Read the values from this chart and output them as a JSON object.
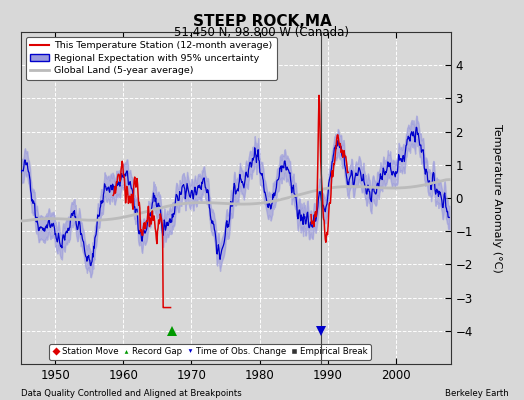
{
  "title": "STEEP ROCK,MA",
  "subtitle": "51.450 N, 98.800 W (Canada)",
  "xlabel_left": "Data Quality Controlled and Aligned at Breakpoints",
  "xlabel_right": "Berkeley Earth",
  "ylabel": "Temperature Anomaly (°C)",
  "xlim": [
    1945,
    2008
  ],
  "ylim": [
    -5,
    5
  ],
  "yticks": [
    -4,
    -3,
    -2,
    -1,
    0,
    1,
    2,
    3,
    4
  ],
  "xticks": [
    1950,
    1960,
    1970,
    1980,
    1990,
    2000
  ],
  "background_color": "#d8d8d8",
  "axes_bg_color": "#d8d8d8",
  "grid_color": "#ffffff",
  "station_color": "#dd0000",
  "regional_color": "#0000cc",
  "regional_fill_color": "#9999dd",
  "global_color": "#bbbbbb",
  "vertical_line_x": 1989.0,
  "time_obs_marker_x": 1989.0,
  "record_gap_x": 1967.2,
  "red_segment1_start": 1958.5,
  "red_segment1_end": 1967.0,
  "red_segment2_start": 1987.5,
  "red_segment2_end": 1993.0
}
